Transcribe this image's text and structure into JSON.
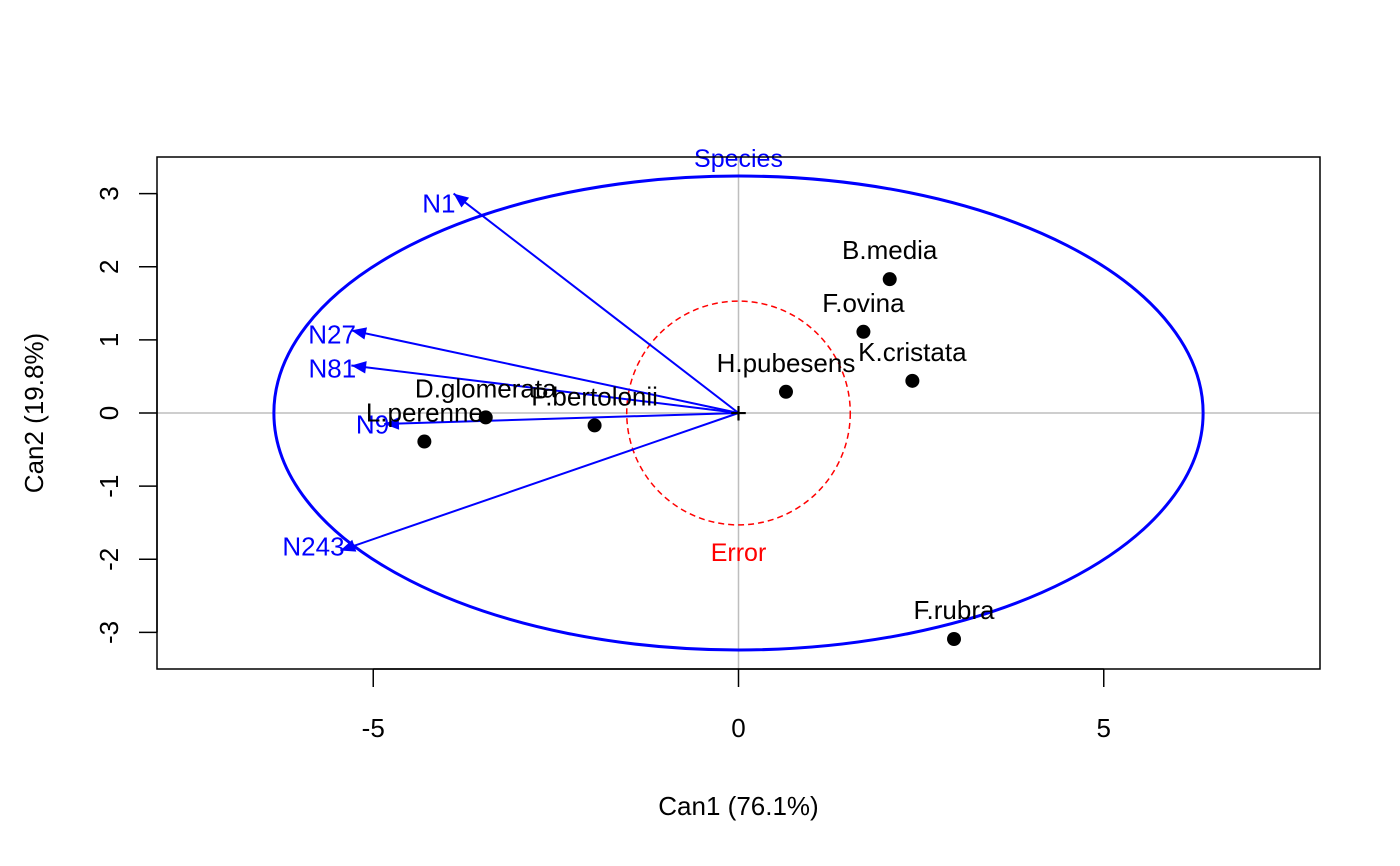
{
  "chart_data": {
    "type": "scatter",
    "subtype": "canonical discriminant plot (candisc) with ellipses and arrows",
    "xlabel": "Can1 (76.1%)",
    "ylabel": "Can2 (19.8%)",
    "xlim": [
      -7.96,
      7.96
    ],
    "ylim": [
      -3.5,
      3.5
    ],
    "x_ticks": [
      -5,
      0,
      5
    ],
    "y_ticks": [
      -3,
      -2,
      -1,
      0,
      1,
      2,
      3
    ],
    "grid": false,
    "reference_lines": {
      "x": 0,
      "y": 0,
      "color": "#bebebe"
    },
    "points": [
      {
        "label": "B.media",
        "x": 2.07,
        "y": 1.83
      },
      {
        "label": "F.ovina",
        "x": 1.71,
        "y": 1.11
      },
      {
        "label": "K.cristata",
        "x": 2.38,
        "y": 0.44
      },
      {
        "label": "H.pubesens",
        "x": 0.65,
        "y": 0.29
      },
      {
        "label": "F.rubra",
        "x": 2.95,
        "y": -3.09
      },
      {
        "label": "D.glomerata",
        "x": -3.46,
        "y": -0.06
      },
      {
        "label": "P.bertolonii",
        "x": -1.97,
        "y": -0.17
      },
      {
        "label": "L.perenne",
        "x": -4.3,
        "y": -0.39
      }
    ],
    "point_color": "#000000",
    "origin_marker": "+",
    "arrows": [
      {
        "label": "N1",
        "x": -3.9,
        "y": 3.0
      },
      {
        "label": "N27",
        "x": -5.3,
        "y": 1.13
      },
      {
        "label": "N81",
        "x": -5.3,
        "y": 0.65
      },
      {
        "label": "N9",
        "x": -4.85,
        "y": -0.15
      },
      {
        "label": "N243",
        "x": -5.45,
        "y": -1.88
      }
    ],
    "arrow_color": "#0000ff",
    "ellipses": [
      {
        "label": "Species",
        "center": [
          0,
          0
        ],
        "rx": 6.36,
        "ry": 3.24,
        "color": "#0000ff",
        "line_style": "solid"
      },
      {
        "label": "Error",
        "center": [
          0,
          0
        ],
        "rx": 1.53,
        "ry": 1.53,
        "color": "#ff0000",
        "line_style": "dashed"
      }
    ]
  }
}
